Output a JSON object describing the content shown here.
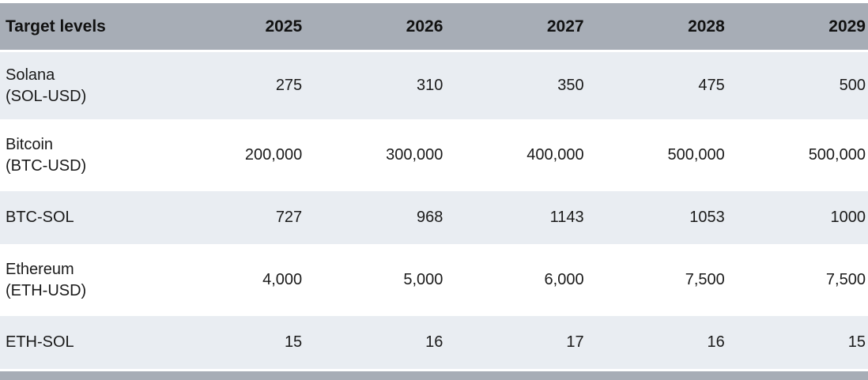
{
  "colors": {
    "header_bg": "#a7adb6",
    "row_shade_bg": "#e9edf2",
    "row_white_bg": "#ffffff",
    "text": "#1a1a1a"
  },
  "table": {
    "header": [
      "Target levels",
      "2025",
      "2026",
      "2027",
      "2028",
      "2029"
    ],
    "rows": [
      {
        "label": "Solana",
        "sublabel": "(SOL-USD)",
        "values": [
          "275",
          "310",
          "350",
          "475",
          "500"
        ]
      },
      {
        "label": "Bitcoin",
        "sublabel": "(BTC-USD)",
        "values": [
          "200,000",
          "300,000",
          "400,000",
          "500,000",
          "500,000"
        ]
      },
      {
        "label": "BTC-SOL",
        "sublabel": "",
        "values": [
          "727",
          "968",
          "1143",
          "1053",
          "1000"
        ]
      },
      {
        "label": "Ethereum",
        "sublabel": "(ETH-USD)",
        "values": [
          "4,000",
          "5,000",
          "6,000",
          "7,500",
          "7,500"
        ]
      },
      {
        "label": "ETH-SOL",
        "sublabel": "",
        "values": [
          "15",
          "16",
          "17",
          "16",
          "15"
        ]
      }
    ]
  },
  "chart_data": {
    "type": "table",
    "title": "Target levels",
    "columns": [
      "Target levels",
      "2025",
      "2026",
      "2027",
      "2028",
      "2029"
    ],
    "rows": [
      {
        "label": "Solana (SOL-USD)",
        "values": [
          275,
          310,
          350,
          475,
          500
        ]
      },
      {
        "label": "Bitcoin (BTC-USD)",
        "values": [
          200000,
          300000,
          400000,
          500000,
          500000
        ]
      },
      {
        "label": "BTC-SOL",
        "values": [
          727,
          968,
          1143,
          1053,
          1000
        ]
      },
      {
        "label": "Ethereum (ETH-USD)",
        "values": [
          4000,
          5000,
          6000,
          7500,
          7500
        ]
      },
      {
        "label": "ETH-SOL",
        "values": [
          15,
          16,
          17,
          16,
          15
        ]
      }
    ]
  }
}
